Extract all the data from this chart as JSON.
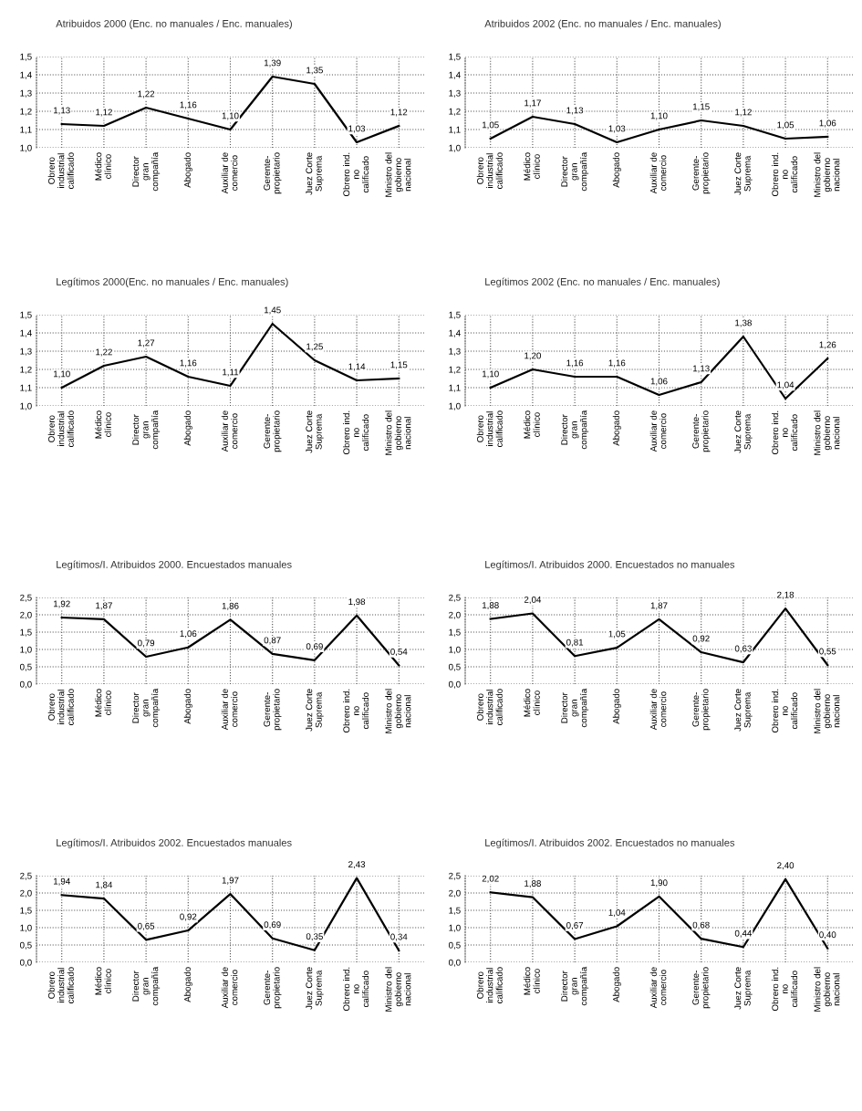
{
  "chart_data": [
    {
      "type": "line",
      "title": "Atribuidos 2000 (Enc. no manuales / Enc. manuales)",
      "categories": [
        "Obrero\nindustrial\ncalificado",
        "Médico\nclínico",
        "Director\ngran\ncompañía",
        "Abogado",
        "Auxiliar de\ncomercio",
        "Gerente-\npropietario",
        "Juez Corte\nSuprema",
        "Obrero ind.\nno\ncalificado",
        "Ministro del\ngobierno\nnacional"
      ],
      "series": [
        {
          "color": "#000000",
          "values": [
            1.13,
            1.12,
            1.22,
            1.16,
            1.1,
            1.39,
            1.35,
            1.03,
            1.12
          ],
          "value_labels": [
            "1,13",
            "1,12",
            "1,22",
            "1,16",
            "1,10",
            "1,39",
            "1,35",
            "1,03",
            "1,12"
          ]
        }
      ],
      "ylim": [
        1.0,
        1.5
      ],
      "yticks": [
        {
          "value": 1.0,
          "label": "1,0"
        },
        {
          "value": 1.1,
          "label": "1,1"
        },
        {
          "value": 1.2,
          "label": "1,2"
        },
        {
          "value": 1.3,
          "label": "1,3"
        },
        {
          "value": 1.4,
          "label": "1,4"
        },
        {
          "value": 1.5,
          "label": "1,5"
        }
      ],
      "grid": true,
      "marker": "none",
      "line_style": "solid"
    },
    {
      "type": "line",
      "title": "Atribuidos 2002 (Enc. no manuales / Enc. manuales)",
      "categories": [
        "Obrero\nindustrial\ncalificado",
        "Médico\nclínico",
        "Director\ngran\ncompañía",
        "Abogado",
        "Auxiliar de\ncomercio",
        "Gerente-\npropietario",
        "Juez Corte\nSuprema",
        "Obrero ind.\nno\ncalificado",
        "Ministro del\ngobierno\nnacional"
      ],
      "series": [
        {
          "color": "#000000",
          "values": [
            1.05,
            1.17,
            1.13,
            1.03,
            1.1,
            1.15,
            1.12,
            1.05,
            1.06
          ],
          "value_labels": [
            "1,05",
            "1,17",
            "1,13",
            "1,03",
            "1,10",
            "1,15",
            "1,12",
            "1,05",
            "1,06"
          ]
        }
      ],
      "ylim": [
        1.0,
        1.5
      ],
      "yticks": [
        {
          "value": 1.0,
          "label": "1,0"
        },
        {
          "value": 1.1,
          "label": "1,1"
        },
        {
          "value": 1.2,
          "label": "1,2"
        },
        {
          "value": 1.3,
          "label": "1,3"
        },
        {
          "value": 1.4,
          "label": "1,4"
        },
        {
          "value": 1.5,
          "label": "1,5"
        }
      ],
      "grid": true,
      "marker": "none",
      "line_style": "solid"
    },
    {
      "type": "line",
      "title": "Legítimos 2000(Enc. no manuales / Enc. manuales)",
      "categories": [
        "Obrero\nindustrial\ncalificado",
        "Médico\nclínico",
        "Director\ngran\ncompañía",
        "Abogado",
        "Auxiliar de\ncomercio",
        "Gerente-\npropietario",
        "Juez Corte\nSuprema",
        "Obrero ind.\nno\ncalificado",
        "Ministro del\ngobierno\nnacional"
      ],
      "series": [
        {
          "color": "#000000",
          "values": [
            1.1,
            1.22,
            1.27,
            1.16,
            1.11,
            1.45,
            1.25,
            1.14,
            1.15
          ],
          "value_labels": [
            "1,10",
            "1,22",
            "1,27",
            "1,16",
            "1,11",
            "1,45",
            "1,25",
            "1,14",
            "1,15"
          ]
        }
      ],
      "ylim": [
        1.0,
        1.5
      ],
      "yticks": [
        {
          "value": 1.0,
          "label": "1,0"
        },
        {
          "value": 1.1,
          "label": "1,1"
        },
        {
          "value": 1.2,
          "label": "1,2"
        },
        {
          "value": 1.3,
          "label": "1,3"
        },
        {
          "value": 1.4,
          "label": "1,4"
        },
        {
          "value": 1.5,
          "label": "1,5"
        }
      ],
      "grid": true,
      "marker": "none",
      "line_style": "solid"
    },
    {
      "type": "line",
      "title": "Legítimos 2002 (Enc. no manuales / Enc. manuales)",
      "categories": [
        "Obrero\nindustrial\ncalificado",
        "Médico\nclínico",
        "Director\ngran\ncompañía",
        "Abogado",
        "Auxiliar de\ncomercio",
        "Gerente-\npropietario",
        "Juez Corte\nSuprema",
        "Obrero ind.\nno\ncalificado",
        "Ministro del\ngobierno\nnacional"
      ],
      "series": [
        {
          "color": "#000000",
          "values": [
            1.1,
            1.2,
            1.16,
            1.16,
            1.06,
            1.13,
            1.38,
            1.04,
            1.26
          ],
          "value_labels": [
            "1,10",
            "1,20",
            "1,16",
            "1,16",
            "1,06",
            "1,13",
            "1,38",
            "1,04",
            "1,26"
          ]
        }
      ],
      "ylim": [
        1.0,
        1.5
      ],
      "yticks": [
        {
          "value": 1.0,
          "label": "1,0"
        },
        {
          "value": 1.1,
          "label": "1,1"
        },
        {
          "value": 1.2,
          "label": "1,2"
        },
        {
          "value": 1.3,
          "label": "1,3"
        },
        {
          "value": 1.4,
          "label": "1,4"
        },
        {
          "value": 1.5,
          "label": "1,5"
        }
      ],
      "grid": true,
      "marker": "none",
      "line_style": "solid"
    },
    {
      "type": "line",
      "title": "Legítimos/I. Atribuidos 2000. Encuestados manuales",
      "categories": [
        "Obrero\nindustrial\ncalificado",
        "Médico\nclínico",
        "Director\ngran\ncompañía",
        "Abogado",
        "Auxiliar de\ncomercio",
        "Gerente-\npropietario",
        "Juez Corte\nSuprema",
        "Obrero ind.\nno\ncalificado",
        "Ministro del\ngobierno\nnacional"
      ],
      "series": [
        {
          "color": "#000000",
          "values": [
            1.92,
            1.87,
            0.79,
            1.06,
            1.86,
            0.87,
            0.69,
            1.98,
            0.54
          ],
          "value_labels": [
            "1,92",
            "1,87",
            "0,79",
            "1,06",
            "1,86",
            "0,87",
            "0,69",
            "1,98",
            "0,54"
          ]
        }
      ],
      "ylim": [
        0.0,
        2.5
      ],
      "yticks": [
        {
          "value": 0.0,
          "label": "0,0"
        },
        {
          "value": 0.5,
          "label": "0,5"
        },
        {
          "value": 1.0,
          "label": "1,0"
        },
        {
          "value": 1.5,
          "label": "1,5"
        },
        {
          "value": 2.0,
          "label": "2,0"
        },
        {
          "value": 2.5,
          "label": "2,5"
        }
      ],
      "grid": true,
      "marker": "none",
      "line_style": "solid"
    },
    {
      "type": "line",
      "title": "Legítimos/I. Atribuidos 2000. Encuestados no manuales",
      "categories": [
        "Obrero\nindustrial\ncalificado",
        "Médico\nclínico",
        "Director\ngran\ncompañía",
        "Abogado",
        "Auxiliar de\ncomercio",
        "Gerente-\npropietario",
        "Juez Corte\nSuprema",
        "Obrero ind.\nno\ncalificado",
        "Ministro del\ngobierno\nnacional"
      ],
      "series": [
        {
          "color": "#000000",
          "values": [
            1.88,
            2.04,
            0.81,
            1.05,
            1.87,
            0.92,
            0.63,
            2.18,
            0.55
          ],
          "value_labels": [
            "1,88",
            "2,04",
            "0,81",
            "1,05",
            "1,87",
            "0,92",
            "0,63",
            "2,18",
            "0,55"
          ]
        }
      ],
      "ylim": [
        0.0,
        2.5
      ],
      "yticks": [
        {
          "value": 0.0,
          "label": "0,0"
        },
        {
          "value": 0.5,
          "label": "0,5"
        },
        {
          "value": 1.0,
          "label": "1,0"
        },
        {
          "value": 1.5,
          "label": "1,5"
        },
        {
          "value": 2.0,
          "label": "2,0"
        },
        {
          "value": 2.5,
          "label": "2,5"
        }
      ],
      "grid": true,
      "marker": "none",
      "line_style": "solid"
    },
    {
      "type": "line",
      "title": "Legítimos/I. Atribuidos 2002. Encuestados manuales",
      "categories": [
        "Obrero\nindustrial\ncalificado",
        "Médico\nclínico",
        "Director\ngran\ncompañía",
        "Abogado",
        "Auxiliar de\ncomercio",
        "Gerente-\npropietario",
        "Juez Corte\nSuprema",
        "Obrero ind.\nno\ncalificado",
        "Ministro del\ngobierno\nnacional"
      ],
      "series": [
        {
          "color": "#000000",
          "values": [
            1.94,
            1.84,
            0.65,
            0.92,
            1.97,
            0.69,
            0.35,
            2.43,
            0.34
          ],
          "value_labels": [
            "1,94",
            "1,84",
            "0,65",
            "0,92",
            "1,97",
            "0,69",
            "0,35",
            "2,43",
            "0,34"
          ]
        }
      ],
      "ylim": [
        0.0,
        2.5
      ],
      "yticks": [
        {
          "value": 0.0,
          "label": "0,0"
        },
        {
          "value": 0.5,
          "label": "0,5"
        },
        {
          "value": 1.0,
          "label": "1,0"
        },
        {
          "value": 1.5,
          "label": "1,5"
        },
        {
          "value": 2.0,
          "label": "2,0"
        },
        {
          "value": 2.5,
          "label": "2,5"
        }
      ],
      "grid": true,
      "marker": "none",
      "line_style": "solid"
    },
    {
      "type": "line",
      "title": "Legítimos/I. Atribuidos 2002. Encuestados no manuales",
      "categories": [
        "Obrero\nindustrial\ncalificado",
        "Médico\nclínico",
        "Director\ngran\ncompañía",
        "Abogado",
        "Auxiliar de\ncomercio",
        "Gerente-\npropietario",
        "Juez Corte\nSuprema",
        "Obrero ind.\nno\ncalificado",
        "Ministro del\ngobierno\nnacional"
      ],
      "series": [
        {
          "color": "#000000",
          "values": [
            2.02,
            1.88,
            0.67,
            1.04,
            1.9,
            0.68,
            0.44,
            2.4,
            0.4
          ],
          "value_labels": [
            "2,02",
            "1,88",
            "0,67",
            "1,04",
            "1,90",
            "0,68",
            "0,44",
            "2,40",
            "0,40"
          ]
        }
      ],
      "ylim": [
        0.0,
        2.5
      ],
      "yticks": [
        {
          "value": 0.0,
          "label": "0,0"
        },
        {
          "value": 0.5,
          "label": "0,5"
        },
        {
          "value": 1.0,
          "label": "1,0"
        },
        {
          "value": 1.5,
          "label": "1,5"
        },
        {
          "value": 2.0,
          "label": "2,0"
        },
        {
          "value": 2.5,
          "label": "2,5"
        }
      ],
      "grid": true,
      "marker": "none",
      "line_style": "solid"
    }
  ]
}
